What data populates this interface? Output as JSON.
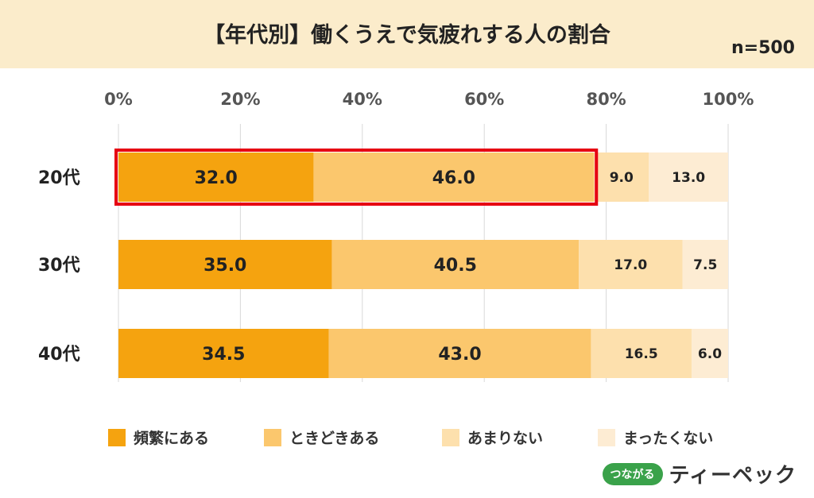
{
  "header": {
    "title": "【年代別】働くうえで気疲れする人の割合",
    "n_label": "n=500"
  },
  "colors": {
    "frequent": "#f5a30f",
    "sometimes": "#fbc76d",
    "rarely": "#fde0ad",
    "never": "#fdecd3",
    "highlight": "#e60012",
    "grid": "#d9d9d9",
    "header_bg": "#fbeccb"
  },
  "chart_data": {
    "type": "bar",
    "orientation": "horizontal",
    "stacked": true,
    "categories": [
      "20代",
      "30代",
      "40代"
    ],
    "series": [
      {
        "name": "頻繁にある",
        "values": [
          32.0,
          35.0,
          34.5
        ]
      },
      {
        "name": "ときどきある",
        "values": [
          46.0,
          40.5,
          43.0
        ]
      },
      {
        "name": "あまりない",
        "values": [
          9.0,
          17.0,
          16.5
        ]
      },
      {
        "name": "まったくない",
        "values": [
          13.0,
          7.5,
          6.0
        ]
      }
    ],
    "value_labels": [
      [
        "32.0",
        "46.0",
        "9.0",
        "13.0"
      ],
      [
        "35.0",
        "40.5",
        "17.0",
        "7.5"
      ],
      [
        "34.5",
        "43.0",
        "16.5",
        "6.0"
      ]
    ],
    "x_ticks": [
      "0%",
      "20%",
      "40%",
      "60%",
      "80%",
      "100%"
    ],
    "xlim": [
      0,
      100
    ],
    "grid": true,
    "legend_position": "bottom",
    "highlight": {
      "category": "20代",
      "series": [
        "頻繁にある",
        "ときどきある"
      ]
    }
  },
  "logo": {
    "badge": "つながる",
    "name": "ティーペック"
  }
}
